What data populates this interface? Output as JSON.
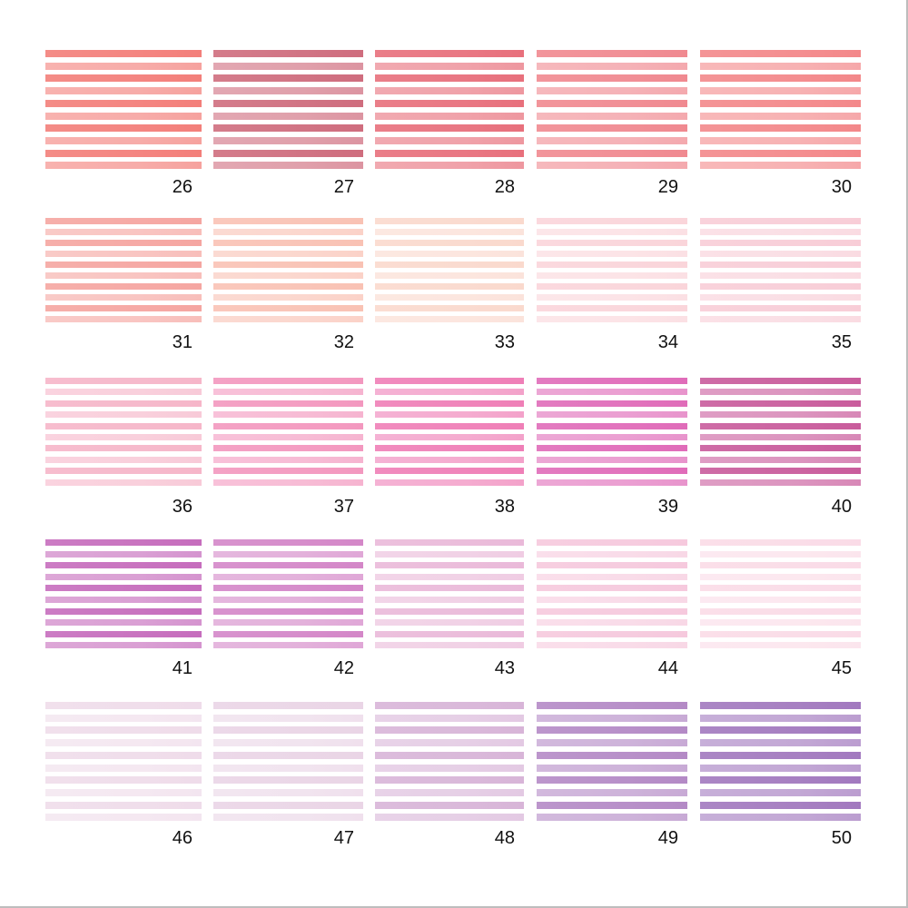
{
  "swatches": [
    {
      "number": "26",
      "color": "#f37f7a"
    },
    {
      "number": "27",
      "color": "#cf6d7e"
    },
    {
      "number": "28",
      "color": "#e8707c"
    },
    {
      "number": "29",
      "color": "#f08990"
    },
    {
      "number": "30",
      "color": "#f3888a"
    },
    {
      "number": "31",
      "color": "#f5a6a1"
    },
    {
      "number": "32",
      "color": "#f9c2b4"
    },
    {
      "number": "33",
      "color": "#fad9cd"
    },
    {
      "number": "34",
      "color": "#fad5da"
    },
    {
      "number": "35",
      "color": "#f8cdd7"
    },
    {
      "number": "36",
      "color": "#f6b6c9"
    },
    {
      "number": "37",
      "color": "#f398bf"
    },
    {
      "number": "38",
      "color": "#ef7fb7"
    },
    {
      "number": "39",
      "color": "#e06cb9"
    },
    {
      "number": "40",
      "color": "#c95c9c"
    },
    {
      "number": "41",
      "color": "#c66dbd"
    },
    {
      "number": "42",
      "color": "#d487c8"
    },
    {
      "number": "43",
      "color": "#eab9d9"
    },
    {
      "number": "44",
      "color": "#f6c9dd"
    },
    {
      "number": "45",
      "color": "#fadbe7"
    },
    {
      "number": "46",
      "color": "#efdcea"
    },
    {
      "number": "47",
      "color": "#ead5e6"
    },
    {
      "number": "48",
      "color": "#d8b5d8"
    },
    {
      "number": "49",
      "color": "#b48ac6"
    },
    {
      "number": "50",
      "color": "#a279bf"
    }
  ]
}
